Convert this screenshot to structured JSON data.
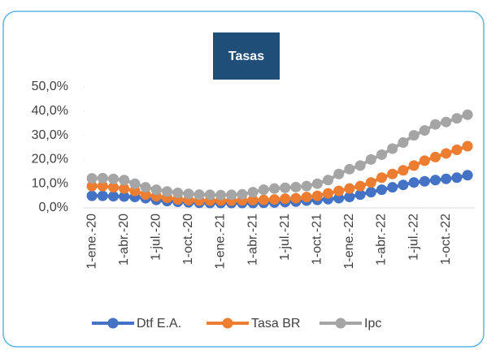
{
  "chart_data": {
    "type": "line",
    "title": "Tasas",
    "categories": [
      "1-ene.-20",
      null,
      null,
      "1-abr.-20",
      null,
      null,
      "1-jul.-20",
      null,
      null,
      "1-oct.-20",
      null,
      null,
      "1-ene.-21",
      null,
      null,
      "1-abr.-21",
      null,
      null,
      "1-jul.-21",
      null,
      null,
      "1-oct.-21",
      null,
      null,
      "1-ene.-22",
      null,
      null,
      "1-abr.-22",
      null,
      null,
      "1-jul.-22",
      null,
      null,
      "1-oct.-22",
      null,
      null
    ],
    "series": [
      {
        "name": "Dtf E.A.",
        "color": "#4472c4",
        "values": [
          5,
          5,
          4.8,
          4.7,
          4.5,
          4,
          3.3,
          2.8,
          2.5,
          2.3,
          2.1,
          2,
          2,
          2,
          2,
          2,
          2.1,
          2.2,
          2.4,
          2.6,
          3,
          3.3,
          3.6,
          4,
          4.5,
          5.5,
          6.5,
          7.5,
          8.5,
          9.5,
          10.5,
          11,
          11.5,
          12,
          12.5,
          13.5
        ]
      },
      {
        "name": "Tasa BR",
        "color": "#ed7d31",
        "values": [
          9,
          9,
          8.5,
          8,
          7,
          5.5,
          4.8,
          4.2,
          3.5,
          3.2,
          3,
          3,
          3,
          3,
          3.1,
          3.2,
          3.3,
          3.5,
          3.8,
          4,
          4.5,
          5,
          6,
          7,
          8,
          9,
          10.5,
          12.5,
          14,
          15.5,
          17.5,
          19.5,
          21,
          22.5,
          24,
          25.5
        ]
      },
      {
        "name": "Ipc",
        "color": "#a5a5a5",
        "values": [
          12.2,
          12.3,
          12,
          11.5,
          10,
          8.5,
          7.5,
          6.8,
          6.2,
          5.8,
          5.5,
          5.4,
          5.3,
          5.4,
          5.6,
          6.5,
          7.5,
          8,
          8.3,
          8.6,
          9,
          10,
          11.5,
          14,
          16,
          17.5,
          20,
          22,
          24.5,
          27,
          30,
          32,
          34.5,
          35.5,
          37,
          38.5
        ]
      }
    ],
    "ylim": [
      0,
      50
    ],
    "yticks": [
      {
        "value": 0,
        "label": "0,0%"
      },
      {
        "value": 10,
        "label": "10,0%"
      },
      {
        "value": 20,
        "label": "20,0%"
      },
      {
        "value": 30,
        "label": "30,0%"
      },
      {
        "value": 40,
        "label": "40,0%"
      },
      {
        "value": 50,
        "label": "50,0%"
      }
    ],
    "grid": false,
    "legend": "bottom"
  }
}
